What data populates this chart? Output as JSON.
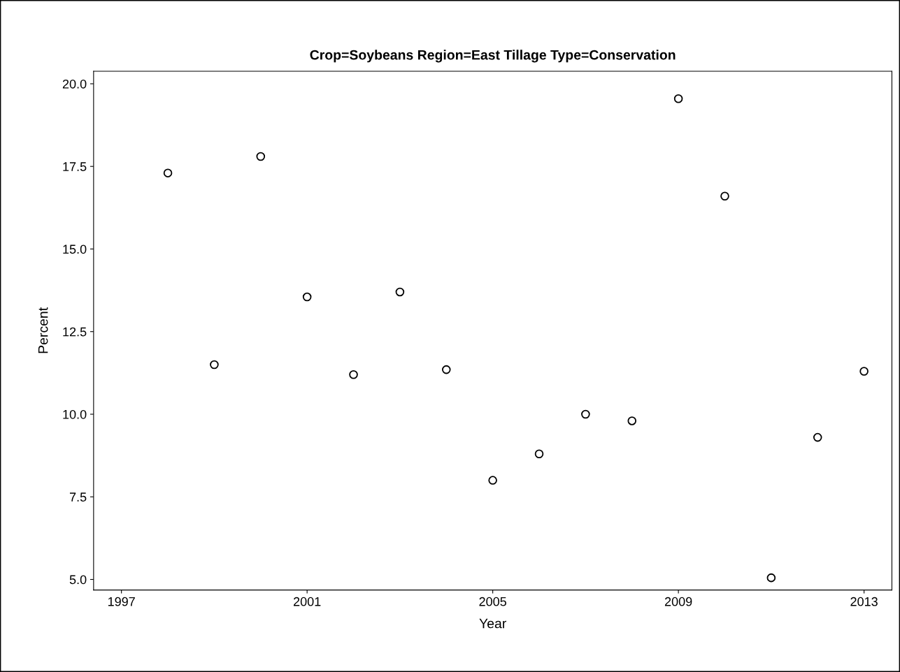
{
  "chart_data": {
    "type": "scatter",
    "title": "Crop=Soybeans Region=East Tillage Type=Conservation",
    "xlabel": "Year",
    "ylabel": "Percent",
    "x": [
      1998,
      1999,
      2000,
      2001,
      2002,
      2003,
      2004,
      2005,
      2006,
      2007,
      2008,
      2009,
      2010,
      2011,
      2012,
      2013
    ],
    "series": [
      {
        "color": "#000000",
        "values": [
          17.3,
          11.5,
          17.8,
          13.55,
          11.2,
          13.7,
          11.35,
          8.0,
          8.8,
          10.0,
          9.8,
          19.55,
          16.6,
          5.05,
          9.3,
          11.3
        ]
      }
    ],
    "marker": "circle",
    "grid": false,
    "legend": false,
    "xlim": [
      1996.4,
      2013.6
    ],
    "xticks": [
      1997,
      2001,
      2005,
      2009,
      2013
    ],
    "ylim": [
      4.68,
      20.38
    ],
    "yticks": [
      {
        "value": 5,
        "label": "5.0"
      },
      {
        "value": 7.5,
        "label": "7.5"
      },
      {
        "value": 10,
        "label": "10.0"
      },
      {
        "value": 12.5,
        "label": "12.5"
      },
      {
        "value": 15,
        "label": "15.0"
      },
      {
        "value": 17.5,
        "label": "17.5"
      },
      {
        "value": 20,
        "label": "20.0"
      }
    ]
  }
}
